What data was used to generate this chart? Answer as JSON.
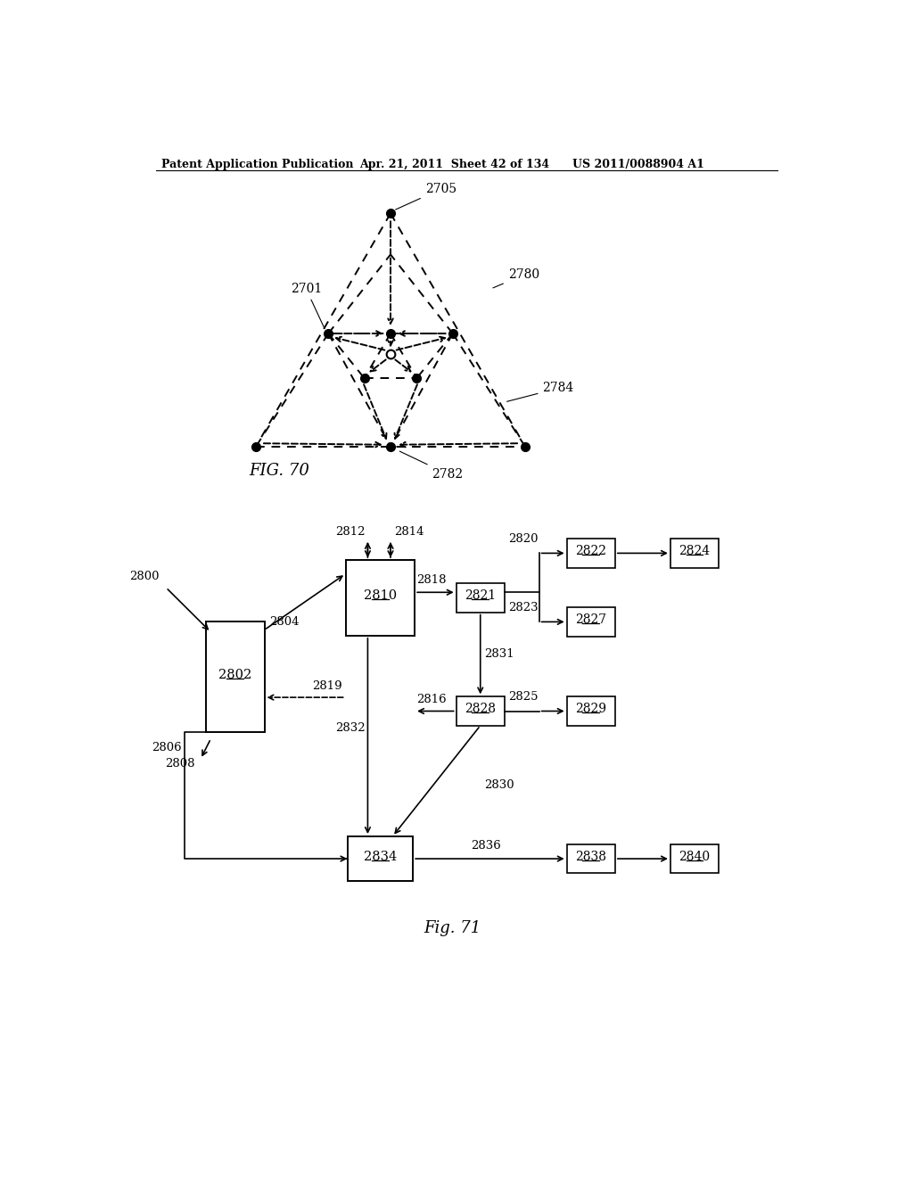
{
  "header_left": "Patent Application Publication",
  "header_mid": "Apr. 21, 2011  Sheet 42 of 134",
  "header_right": "US 2011/0088904 A1",
  "fig70_caption": "FIG. 70",
  "fig71_caption": "Fig. 71",
  "bg_color": "#ffffff",
  "text_color": "#000000"
}
